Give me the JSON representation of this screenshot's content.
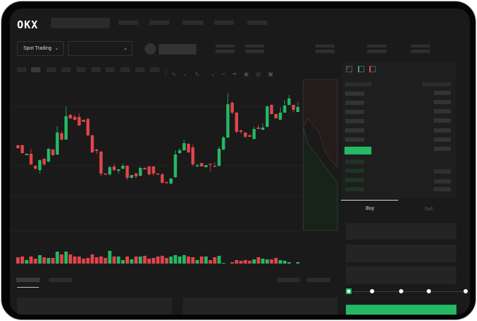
{
  "logo": "OKX",
  "market_type": {
    "label": "Spot Trading"
  },
  "trade_tabs": {
    "buy": "Buy",
    "sell": "Sell"
  },
  "colors": {
    "up": "#25b865",
    "down": "#e0454a",
    "background": "#1a1a1a"
  },
  "icons": [
    "chevron-down-icon",
    "indicator-icon",
    "drawing-icon",
    "camera-icon",
    "settings-icon",
    "fullscreen-icon",
    "orderbook-both-icon",
    "orderbook-bids-icon",
    "orderbook-asks-icon"
  ],
  "order_slider": {
    "percent": 0,
    "stops": [
      0,
      25,
      50,
      75,
      100
    ]
  },
  "chart_data": {
    "type": "candlestick",
    "ohlc_fields": [
      "open",
      "high",
      "low",
      "close"
    ],
    "candles": [
      [
        57,
        58,
        52,
        53
      ],
      [
        57,
        58,
        45,
        46
      ],
      [
        43,
        45,
        43,
        45
      ],
      [
        45,
        52,
        29,
        30
      ],
      [
        28,
        29,
        22,
        24
      ],
      [
        22,
        37,
        17,
        36
      ],
      [
        38,
        39,
        28,
        30
      ],
      [
        34,
        53,
        33,
        52
      ],
      [
        51,
        52,
        42,
        43
      ],
      [
        44,
        84,
        43,
        75
      ],
      [
        74,
        77,
        64,
        65
      ],
      [
        65,
        112,
        65,
        98
      ],
      [
        100,
        101,
        94,
        95
      ],
      [
        97,
        100,
        92,
        93
      ],
      [
        97,
        102,
        84,
        85
      ],
      [
        93,
        93,
        90,
        90
      ],
      [
        94,
        96,
        70,
        71
      ],
      [
        71,
        72,
        46,
        47
      ],
      [
        51,
        52,
        45,
        49
      ],
      [
        48,
        49,
        13,
        17
      ],
      [
        17,
        18,
        15,
        16
      ],
      [
        16,
        28,
        14,
        26
      ],
      [
        27,
        31,
        20,
        22
      ],
      [
        21,
        23,
        17,
        23
      ],
      [
        24,
        31,
        23,
        28
      ],
      [
        28,
        29,
        8,
        11
      ],
      [
        11,
        15,
        10,
        15
      ],
      [
        17,
        19,
        10,
        13
      ],
      [
        14,
        27,
        13,
        25
      ],
      [
        25,
        26,
        23,
        23
      ],
      [
        27,
        28,
        14,
        16
      ],
      [
        27,
        28,
        14,
        17
      ],
      [
        17,
        18,
        16,
        16
      ],
      [
        16,
        18,
        3,
        4
      ],
      [
        5,
        6,
        3,
        4
      ],
      [
        3,
        11,
        2,
        10
      ],
      [
        12,
        50,
        11,
        44
      ],
      [
        46,
        53,
        45,
        50
      ],
      [
        50,
        65,
        49,
        60
      ],
      [
        59,
        60,
        46,
        47
      ],
      [
        54,
        58,
        28,
        30
      ],
      [
        28,
        31,
        26,
        29
      ],
      [
        32,
        32,
        27,
        27
      ],
      [
        26,
        29,
        26,
        29
      ],
      [
        31,
        31,
        20,
        30
      ],
      [
        28,
        33,
        27,
        27
      ],
      [
        28,
        55,
        27,
        52
      ],
      [
        51,
        70,
        50,
        68
      ],
      [
        68,
        131,
        67,
        115
      ],
      [
        117,
        119,
        100,
        103
      ],
      [
        103,
        104,
        74,
        76
      ],
      [
        78,
        79,
        73,
        76
      ],
      [
        75,
        75,
        67,
        69
      ],
      [
        71,
        73,
        69,
        69
      ],
      [
        66,
        83,
        65,
        80
      ],
      [
        82,
        86,
        80,
        80
      ],
      [
        79,
        88,
        78,
        82
      ],
      [
        83,
        113,
        82,
        112
      ],
      [
        114,
        115,
        100,
        101
      ],
      [
        101,
        102,
        95,
        95
      ],
      [
        93,
        110,
        93,
        103
      ],
      [
        103,
        121,
        103,
        113
      ],
      [
        114,
        128,
        113,
        123
      ],
      [
        114,
        114,
        103,
        107
      ],
      [
        104,
        118,
        104,
        111
      ]
    ],
    "volume": [
      12,
      13,
      8,
      13,
      10,
      15,
      12,
      11,
      11,
      20,
      16,
      20,
      16,
      13,
      13,
      10,
      11,
      16,
      12,
      13,
      11,
      21,
      13,
      13,
      8,
      13,
      9,
      13,
      13,
      14,
      10,
      11,
      13,
      14,
      11,
      13,
      15,
      13,
      15,
      13,
      12,
      8,
      13,
      13,
      8,
      12,
      14,
      4,
      3,
      5,
      8,
      7,
      8,
      7,
      9,
      12,
      10,
      9,
      9,
      11,
      8,
      7,
      5,
      3,
      5
    ]
  }
}
